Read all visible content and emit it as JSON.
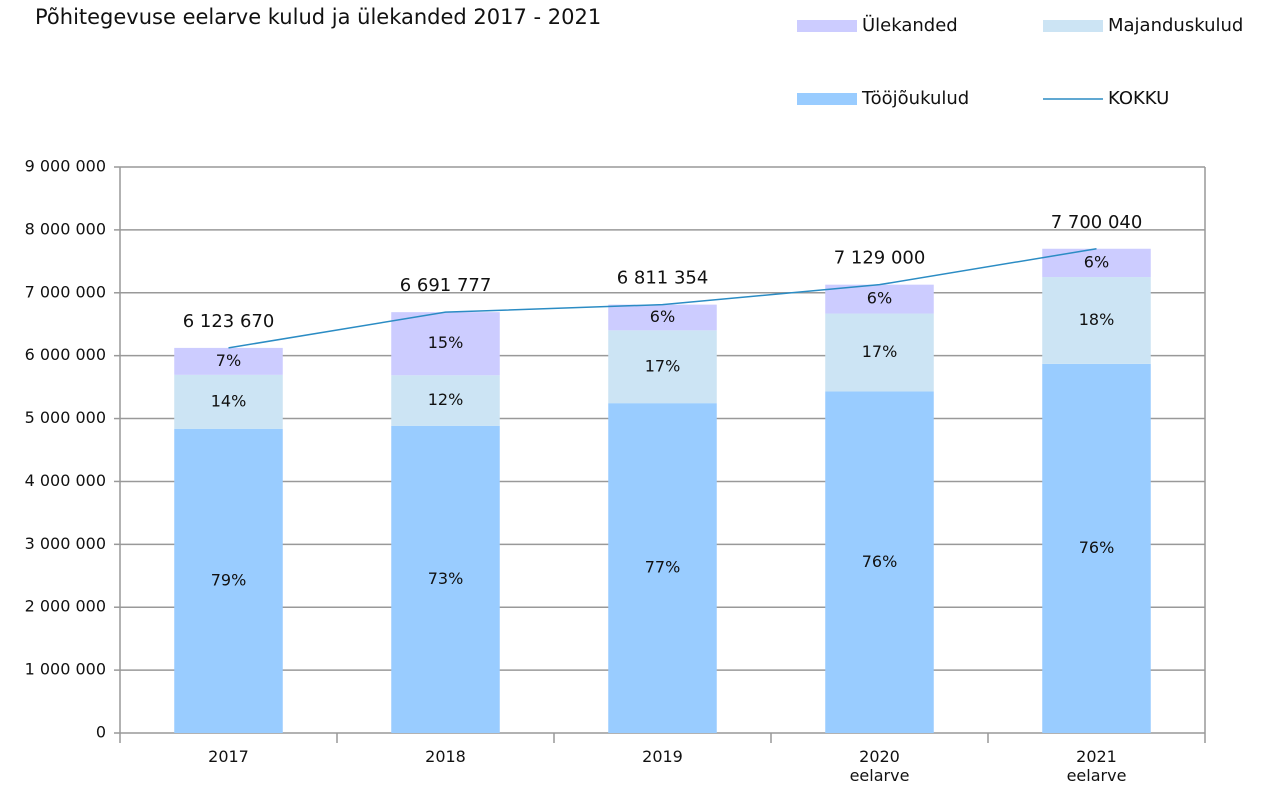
{
  "chart_data": {
    "type": "bar",
    "stacked": true,
    "title": "Põhitegevuse eelarve kulud ja ülekanded  2017 - 2021",
    "categories": [
      "2017",
      "2018",
      "2019",
      "2020\neelarve",
      "2021\neelarve"
    ],
    "series": [
      {
        "name": "Tööjõukulud",
        "color": "#99ccff",
        "values": [
          4837700,
          4885000,
          5244700,
          5430000,
          5870000
        ],
        "value_labels": [
          "79%",
          "73%",
          "77%",
          "76%",
          "76%"
        ]
      },
      {
        "name": "Majanduskulud",
        "color": "#cce4f4",
        "values": [
          857300,
          803000,
          1157900,
          1240000,
          1380000
        ],
        "value_labels": [
          "14%",
          "12%",
          "17%",
          "17%",
          "18%"
        ]
      },
      {
        "name": "Ülekanded",
        "color": "#ccccff",
        "values": [
          428670,
          1003777,
          408754,
          459000,
          450040
        ],
        "value_labels": [
          "7%",
          "15%",
          "6%",
          "6%",
          "6%"
        ]
      },
      {
        "name": "KOKKU",
        "type": "line",
        "color": "#2b8cc4",
        "values": [
          6123670,
          6691777,
          6811354,
          7129000,
          7700040
        ],
        "value_labels": [
          "6 123 670",
          "6 691 777",
          "6 811 354",
          "7 129 000",
          "7 700 040"
        ]
      }
    ],
    "ylim": [
      0,
      9000000
    ],
    "yticks": [
      0,
      {
        "value": 1000000,
        "label": "1 000 000"
      },
      {
        "value": 2000000,
        "label": "2 000 000"
      },
      {
        "value": 3000000,
        "label": "3 000 000"
      },
      {
        "value": 4000000,
        "label": "4 000 000"
      },
      {
        "value": 5000000,
        "label": "5 000 000"
      },
      {
        "value": 6000000,
        "label": "6 000 000"
      },
      {
        "value": 7000000,
        "label": "7 000 000"
      },
      {
        "value": 8000000,
        "label": "8 000 000"
      },
      {
        "value": 9000000,
        "label": "9 000 000"
      }
    ],
    "grid": true,
    "legend": "top-right"
  }
}
